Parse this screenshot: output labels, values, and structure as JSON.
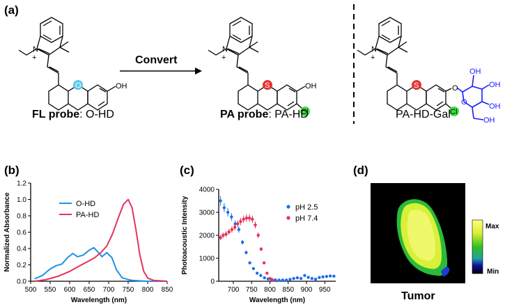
{
  "panels": {
    "a": "(a)",
    "b": "(b)",
    "c": "(c)",
    "d": "(d)"
  },
  "scheme": {
    "arrow_label": "Convert",
    "fl_caption_bold": "FL probe",
    "fl_caption_rest": ": O-HD",
    "pa_caption_bold": "PA probe",
    "pa_caption_rest": ": PA-HD",
    "gal_caption": "PA-HD-Gal",
    "atoms": {
      "n": "N",
      "plus": "+",
      "o_core": "O",
      "s": "S",
      "oh": "OH",
      "cl": "Cl",
      "o_link": "O",
      "o_ring": "O"
    },
    "colors": {
      "oxygen_highlight": "#5bc8e8",
      "sulfur_highlight": "#e53333",
      "chlorine_highlight": "#44dd44",
      "sugar": "#1a1aff"
    }
  },
  "chart_data": [
    {
      "panel": "b",
      "type": "line",
      "xlabel": "Wavelength (nm)",
      "ylabel": "Normalized Absorbance",
      "xlim": [
        500,
        850
      ],
      "ylim": [
        0,
        1.2
      ],
      "xticks": [
        500,
        550,
        600,
        650,
        700,
        750,
        800,
        850
      ],
      "yticks": [
        0.0,
        0.2,
        0.4,
        0.6,
        0.8,
        1.0,
        1.2
      ],
      "legend_position": "top-left",
      "series": [
        {
          "name": "O-HD",
          "color": "#1e90e8",
          "x": [
            510,
            530,
            550,
            565,
            580,
            595,
            608,
            620,
            635,
            650,
            662,
            672,
            683,
            695,
            708,
            720,
            735,
            760,
            800,
            850
          ],
          "y": [
            0.03,
            0.07,
            0.15,
            0.19,
            0.21,
            0.29,
            0.34,
            0.3,
            0.32,
            0.38,
            0.41,
            0.36,
            0.3,
            0.35,
            0.29,
            0.14,
            0.04,
            0.01,
            0.0,
            0.0
          ]
        },
        {
          "name": "PA-HD",
          "color": "#e8305a",
          "x": [
            510,
            540,
            570,
            600,
            630,
            650,
            665,
            680,
            695,
            710,
            725,
            738,
            750,
            760,
            770,
            780,
            790,
            800,
            815,
            850
          ],
          "y": [
            0.0,
            0.02,
            0.06,
            0.12,
            0.2,
            0.25,
            0.29,
            0.35,
            0.43,
            0.58,
            0.78,
            0.94,
            1.0,
            0.9,
            0.63,
            0.32,
            0.12,
            0.04,
            0.01,
            0.0
          ]
        }
      ]
    },
    {
      "panel": "c",
      "type": "scatter",
      "xlabel": "Wavelength (nm)",
      "ylabel": "Photoacoustic Intensity",
      "xlim": [
        660,
        980
      ],
      "ylim": [
        0,
        4000
      ],
      "xticks": [
        700,
        750,
        800,
        850,
        900,
        950
      ],
      "yticks": [
        0,
        1000,
        2000,
        3000,
        4000
      ],
      "legend_position": "right",
      "series": [
        {
          "name": "pH 2.5",
          "color": "#1e6ee8",
          "x": [
            665,
            675,
            685,
            695,
            705,
            715,
            725,
            735,
            745,
            755,
            765,
            775,
            785,
            795,
            805,
            815,
            825,
            835,
            845,
            855,
            865,
            875,
            885,
            895,
            905,
            915,
            925,
            935,
            945,
            955,
            965,
            975
          ],
          "y": [
            3500,
            3200,
            3000,
            2800,
            2500,
            2250,
            1700,
            1250,
            800,
            550,
            350,
            250,
            150,
            100,
            80,
            60,
            50,
            50,
            50,
            80,
            120,
            150,
            120,
            250,
            170,
            120,
            90,
            160,
            190,
            210,
            230,
            220
          ]
        },
        {
          "name": "pH 7.4",
          "color": "#e8305a",
          "x": [
            665,
            672,
            680,
            688,
            696,
            704,
            712,
            720,
            728,
            736,
            744,
            752,
            760,
            768,
            776,
            784,
            792,
            800,
            808
          ],
          "y": [
            1900,
            2000,
            2050,
            2150,
            2250,
            2350,
            2500,
            2600,
            2700,
            2750,
            2750,
            2700,
            2450,
            2000,
            1400,
            800,
            350,
            120,
            40
          ]
        }
      ]
    }
  ],
  "imaging": {
    "caption": "Tumor",
    "colorbar_max": "Max",
    "colorbar_min": "Min"
  }
}
